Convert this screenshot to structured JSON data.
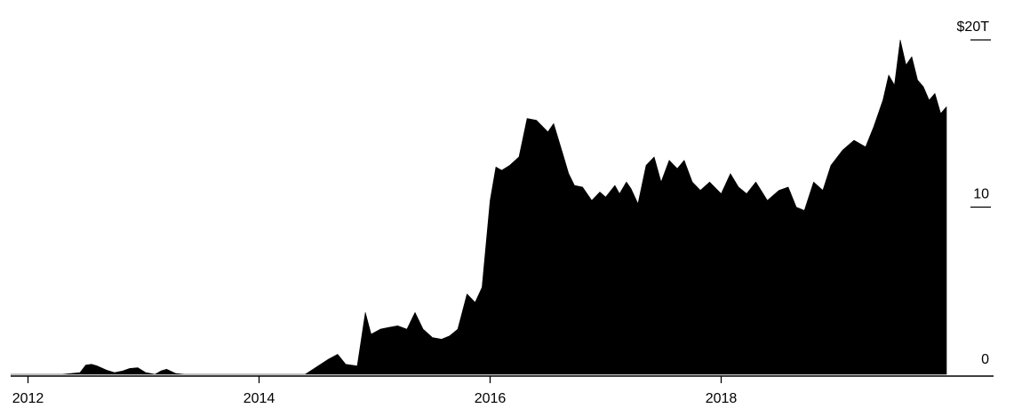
{
  "chart_data": {
    "type": "area",
    "title": "",
    "xlabel": "",
    "ylabel": "",
    "x_tick_labels": [
      "2012",
      "2014",
      "2016",
      "2018"
    ],
    "y_tick_labels": [
      "0",
      "10",
      "$20T"
    ],
    "y_ticks": [
      0,
      10,
      20
    ],
    "xlim": [
      2011.85,
      2019.95
    ],
    "ylim": [
      0,
      20
    ],
    "grid": false,
    "fill_color": "#000000",
    "series": [
      {
        "x": [
          2011.85,
          2012.3,
          2012.45,
          2012.5,
          2012.55,
          2012.6,
          2012.68,
          2012.75,
          2012.82,
          2012.88,
          2012.95,
          2013.02,
          2013.1,
          2013.15,
          2013.2,
          2013.28,
          2013.35,
          2014.4,
          2014.6,
          2014.68,
          2014.75,
          2014.85,
          2014.92,
          2014.97,
          2015.05,
          2015.12,
          2015.2,
          2015.28,
          2015.35,
          2015.42,
          2015.5,
          2015.58,
          2015.65,
          2015.72,
          2015.8,
          2015.87,
          2015.93,
          2016.0,
          2016.05,
          2016.1,
          2016.17,
          2016.25,
          2016.32,
          2016.4,
          2016.5,
          2016.55,
          2016.62,
          2016.68,
          2016.73,
          2016.8,
          2016.88,
          2016.95,
          2017.0,
          2017.08,
          2017.12,
          2017.18,
          2017.22,
          2017.28,
          2017.35,
          2017.42,
          2017.48,
          2017.55,
          2017.62,
          2017.68,
          2017.75,
          2017.82,
          2017.9,
          2018.0,
          2018.08,
          2018.15,
          2018.22,
          2018.3,
          2018.4,
          2018.5,
          2018.58,
          2018.65,
          2018.72,
          2018.8,
          2018.88,
          2018.95,
          2019.05,
          2019.15,
          2019.25,
          2019.32,
          2019.4,
          2019.45,
          2019.5,
          2019.55,
          2019.6,
          2019.65,
          2019.7,
          2019.75,
          2019.8,
          2019.85,
          2019.9,
          2019.95
        ],
        "values": [
          0,
          0,
          0.1,
          0.55,
          0.6,
          0.5,
          0.25,
          0.1,
          0.2,
          0.35,
          0.4,
          0.1,
          0,
          0.2,
          0.3,
          0.05,
          0,
          0,
          0.9,
          1.2,
          0.6,
          0.5,
          3.7,
          2.4,
          2.7,
          2.8,
          2.9,
          2.7,
          3.7,
          2.7,
          2.2,
          2.1,
          2.3,
          2.7,
          4.8,
          4.3,
          5.2,
          10.4,
          12.4,
          12.2,
          12.5,
          13.0,
          15.3,
          15.2,
          14.5,
          15.0,
          13.4,
          12.0,
          11.3,
          11.2,
          10.4,
          10.9,
          10.6,
          11.3,
          10.8,
          11.5,
          11.1,
          10.2,
          12.5,
          13.0,
          11.5,
          12.8,
          12.3,
          12.8,
          11.5,
          11.0,
          11.5,
          10.8,
          12.0,
          11.2,
          10.8,
          11.5,
          10.4,
          11.0,
          11.2,
          10.0,
          9.8,
          11.5,
          11.0,
          12.5,
          13.4,
          14.0,
          13.6,
          14.8,
          16.4,
          17.9,
          17.3,
          20.0,
          18.5,
          19.0,
          17.6,
          17.2,
          16.4,
          16.8,
          15.6,
          16.0
        ]
      }
    ]
  }
}
